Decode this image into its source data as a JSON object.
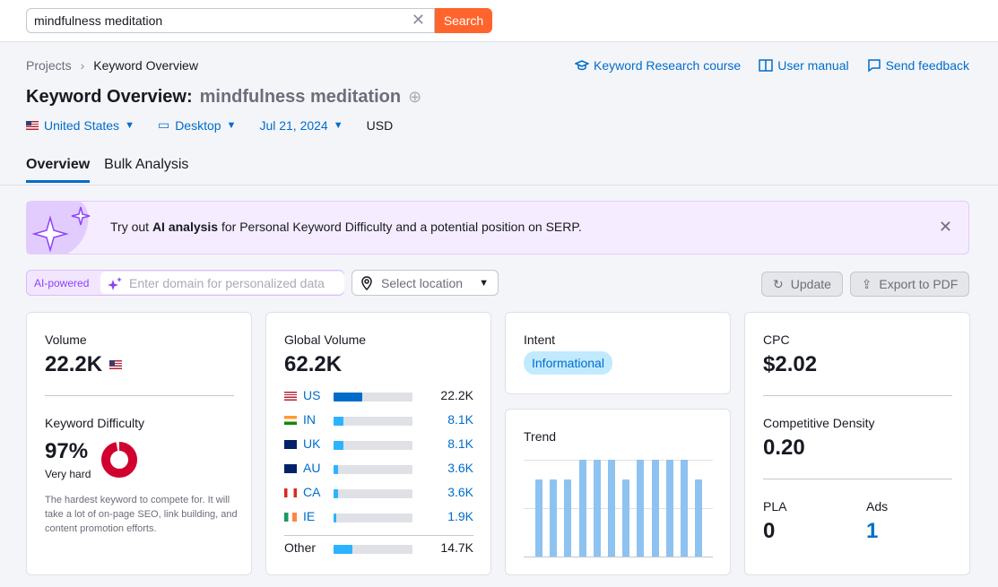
{
  "search": {
    "value": "mindfulness meditation",
    "button": "Search"
  },
  "breadcrumb": {
    "root": "Projects",
    "current": "Keyword Overview"
  },
  "help": {
    "course": "Keyword Research course",
    "manual": "User manual",
    "feedback": "Send feedback"
  },
  "title": {
    "prefix": "Keyword Overview:",
    "keyword": "mindfulness meditation"
  },
  "filters": {
    "country": "United States",
    "device": "Desktop",
    "date": "Jul 21, 2024",
    "currency": "USD"
  },
  "tabs": [
    {
      "label": "Overview"
    },
    {
      "label": "Bulk Analysis"
    }
  ],
  "banner": {
    "prefix": "Try out ",
    "highlight": "AI analysis",
    "suffix": " for Personal Keyword Difficulty and a potential position on SERP."
  },
  "ai": {
    "label": "AI-powered",
    "placeholder": "Enter domain for personalized data"
  },
  "location": {
    "placeholder": "Select location"
  },
  "actions": {
    "update": "Update",
    "export": "Export to PDF"
  },
  "volume": {
    "label": "Volume",
    "value": "22.2K"
  },
  "kd": {
    "label": "Keyword Difficulty",
    "value": "97%",
    "level": "Very hard",
    "percent": 97,
    "color": "#d1002f",
    "description": "The hardest keyword to compete for. It will take a lot of on-page SEO, link building, and content promotion efforts."
  },
  "global": {
    "label": "Global Volume",
    "value": "62.2K",
    "rows": [
      {
        "code": "US",
        "value": "22.2K",
        "share": 0.36,
        "color": "#006dca"
      },
      {
        "code": "IN",
        "value": "8.1K",
        "share": 0.13,
        "color": "#2bb3ff"
      },
      {
        "code": "UK",
        "value": "8.1K",
        "share": 0.13,
        "color": "#2bb3ff"
      },
      {
        "code": "AU",
        "value": "3.6K",
        "share": 0.06,
        "color": "#2bb3ff"
      },
      {
        "code": "CA",
        "value": "3.6K",
        "share": 0.06,
        "color": "#2bb3ff"
      },
      {
        "code": "IE",
        "value": "1.9K",
        "share": 0.03,
        "color": "#2bb3ff"
      }
    ],
    "other": {
      "label": "Other",
      "value": "14.7K",
      "share": 0.24,
      "color": "#2bb3ff"
    }
  },
  "intent": {
    "label": "Intent",
    "value": "Informational"
  },
  "trend": {
    "label": "Trend",
    "values": [
      0.8,
      0.8,
      0.8,
      1.0,
      1.0,
      1.0,
      0.8,
      1.0,
      1.0,
      1.0,
      1.0,
      0.8
    ]
  },
  "cpc": {
    "label": "CPC",
    "value": "$2.02"
  },
  "density": {
    "label": "Competitive Density",
    "value": "0.20"
  },
  "pla": {
    "label": "PLA",
    "value": "0"
  },
  "ads": {
    "label": "Ads",
    "value": "1"
  },
  "colors": {
    "accent": "#006dca",
    "orange": "#ff642d",
    "purple": "#8c43fc"
  }
}
